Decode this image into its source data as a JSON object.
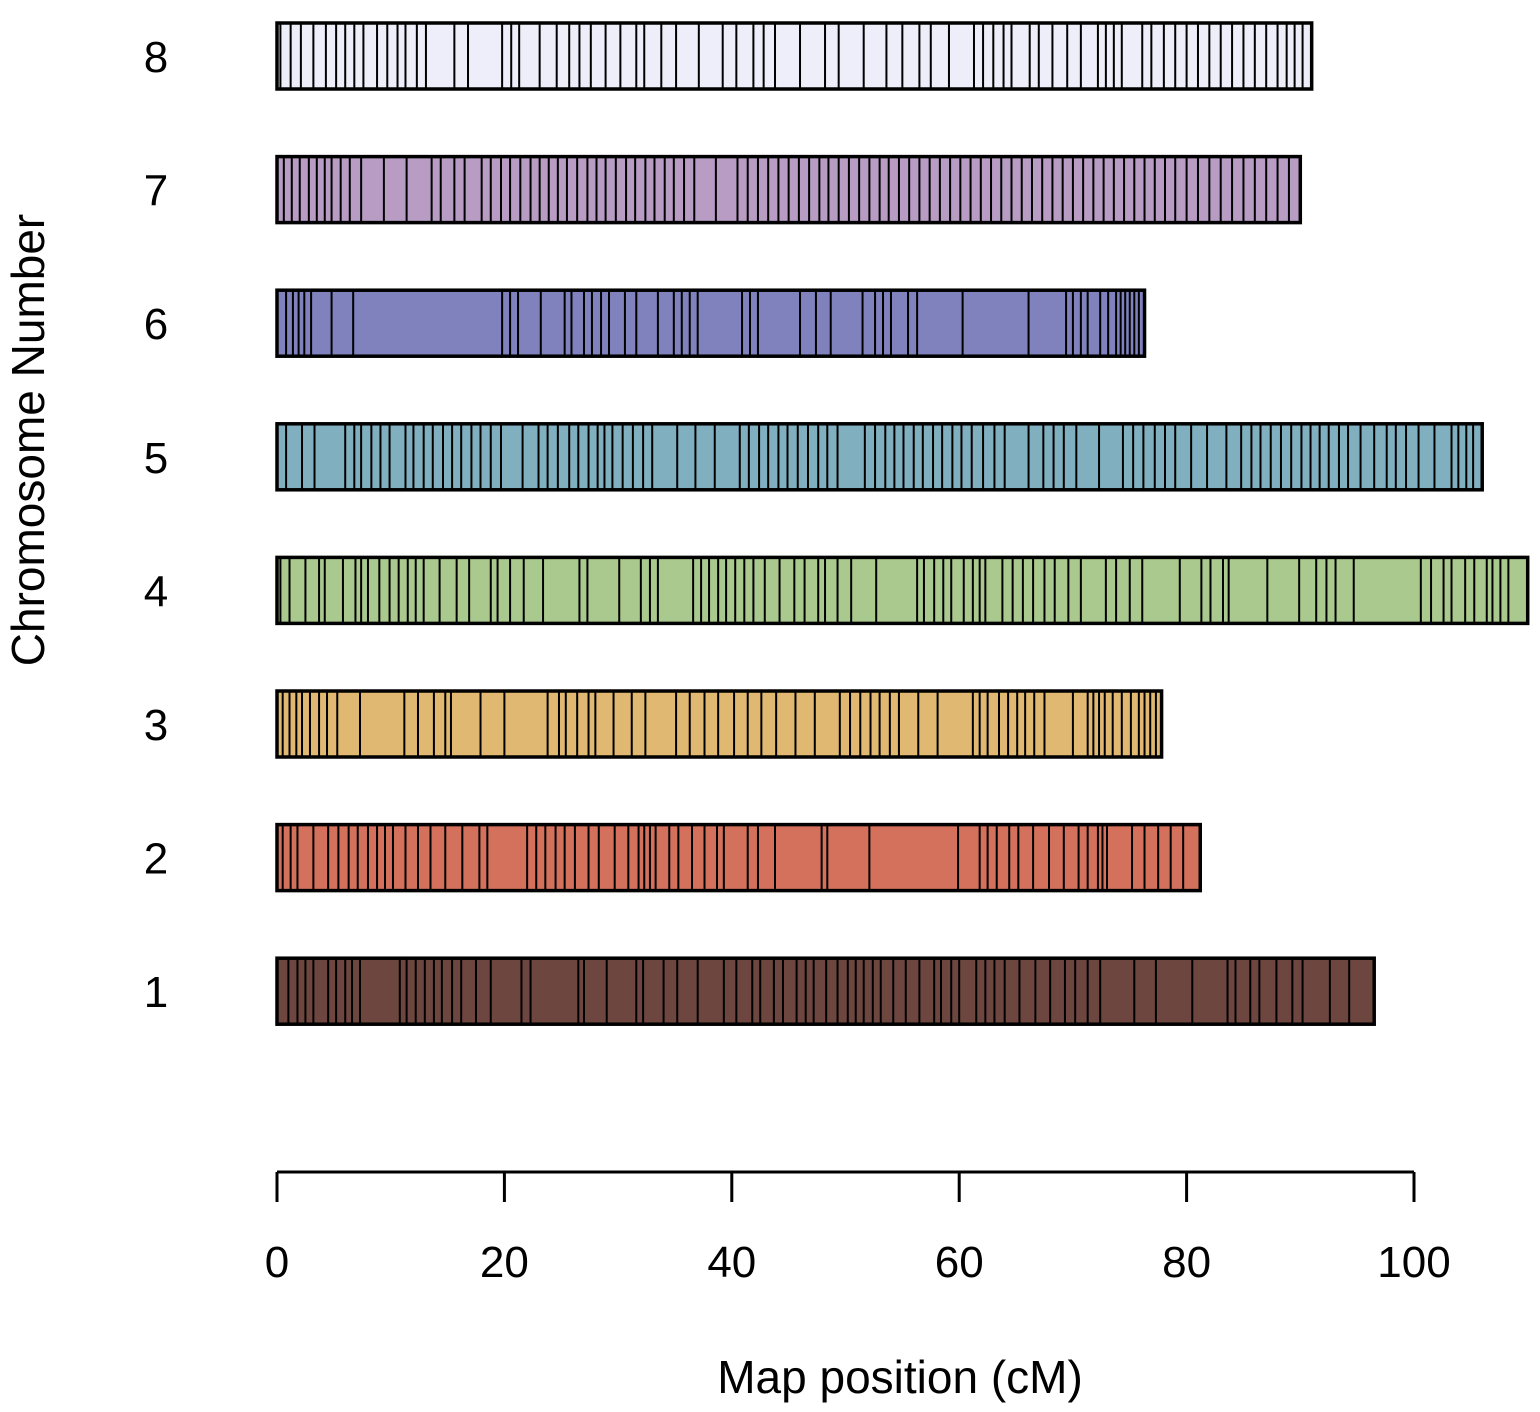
{
  "chart_data": {
    "type": "linkage-map",
    "xlabel": "Map position (cM)",
    "ylabel": "Chromosome Number",
    "xticks": [
      0,
      20,
      40,
      60,
      80,
      100
    ],
    "xlim": [
      0,
      110
    ],
    "chromosomes": [
      {
        "label": "1",
        "length": 96.5,
        "color": "#6e4640",
        "markers": [
          1.0,
          1.8,
          2.5,
          3.2,
          4.5,
          5.2,
          6.0,
          6.6,
          7.3,
          10.8,
          11.4,
          12.2,
          13.0,
          13.8,
          14.5,
          15.4,
          16.2,
          17.5,
          18.8,
          21.5,
          22.3,
          26.5,
          27.0,
          29.0,
          31.6,
          32.2,
          34.0,
          35.2,
          37.0,
          39.3,
          40.4,
          41.8,
          42.5,
          43.7,
          44.5,
          45.7,
          46.5,
          47.2,
          48.3,
          49.3,
          50.2,
          50.9,
          51.6,
          52.4,
          53.1,
          54.2,
          55.3,
          56.5,
          57.8,
          58.4,
          59.3,
          60.0,
          61.5,
          62.3,
          63.1,
          64.0,
          65.3,
          66.7,
          68.0,
          69.3,
          70.2,
          71.3,
          72.4,
          75.4,
          77.3,
          80.5,
          83.6,
          84.3,
          85.6,
          86.4,
          87.9,
          89.3,
          90.2,
          92.6,
          94.3
        ]
      },
      {
        "label": "2",
        "length": 81.2,
        "color": "#d4715c",
        "markers": [
          0.5,
          1.2,
          1.8,
          3.2,
          4.5,
          5.4,
          6.3,
          7.1,
          8.0,
          8.8,
          9.5,
          10.2,
          11.3,
          12.4,
          13.5,
          14.8,
          16.3,
          17.8,
          18.5,
          22.0,
          22.8,
          23.6,
          24.5,
          25.3,
          26.2,
          27.4,
          28.3,
          29.7,
          30.9,
          31.8,
          32.3,
          32.8,
          33.3,
          34.5,
          35.3,
          36.5,
          37.6,
          38.7,
          39.3,
          41.4,
          42.3,
          43.8,
          47.9,
          48.4,
          52.1,
          59.9,
          61.8,
          62.5,
          63.3,
          64.4,
          65.2,
          66.5,
          67.9,
          69.2,
          70.5,
          71.3,
          72.2,
          72.6,
          73.0,
          75.2,
          76.3,
          77.5,
          78.6,
          79.7
        ]
      },
      {
        "label": "3",
        "length": 77.8,
        "color": "#e0b872",
        "markers": [
          0.5,
          1.1,
          1.7,
          2.2,
          2.9,
          3.7,
          4.4,
          5.3,
          7.3,
          11.2,
          12.4,
          13.8,
          14.8,
          15.3,
          17.9,
          20.0,
          23.8,
          24.8,
          25.4,
          26.4,
          27.4,
          28.0,
          29.6,
          31.2,
          32.4,
          35.1,
          36.3,
          37.6,
          38.8,
          40.2,
          41.4,
          42.6,
          43.9,
          45.6,
          47.3,
          49.5,
          50.4,
          51.3,
          52.2,
          53.0,
          53.9,
          54.7,
          56.4,
          58.1,
          61.2,
          61.8,
          62.5,
          63.5,
          64.3,
          65.1,
          65.8,
          66.6,
          67.5,
          70.0,
          71.3,
          71.8,
          72.3,
          72.8,
          73.5,
          74.3,
          75.1,
          75.8,
          76.3,
          76.8,
          77.3
        ]
      },
      {
        "label": "4",
        "length": 110.0,
        "color": "#aac98e",
        "markers": [
          0.3,
          1.1,
          2.5,
          3.7,
          4.2,
          5.8,
          6.9,
          7.4,
          8.0,
          9.0,
          9.9,
          10.7,
          11.5,
          12.2,
          12.9,
          14.3,
          15.8,
          16.9,
          18.8,
          19.4,
          20.5,
          21.7,
          23.4,
          26.6,
          27.3,
          30.1,
          32.0,
          32.8,
          33.5,
          36.6,
          37.3,
          38.0,
          38.8,
          39.5,
          40.3,
          41.1,
          41.9,
          42.9,
          44.2,
          45.5,
          46.4,
          47.6,
          48.2,
          49.3,
          50.5,
          52.7,
          56.3,
          56.9,
          57.8,
          58.6,
          59.3,
          60.4,
          61.2,
          61.8,
          62.3,
          63.8,
          64.7,
          65.6,
          66.5,
          67.5,
          68.4,
          69.6,
          70.7,
          72.9,
          73.8,
          75.0,
          76.1,
          79.4,
          81.3,
          82.1,
          83.2,
          83.7,
          87.1,
          89.9,
          91.4,
          92.3,
          93.1,
          94.7,
          100.6,
          101.5,
          102.6,
          103.3,
          104.5,
          105.3,
          106.4,
          106.9,
          107.6,
          108.3
        ]
      },
      {
        "label": "5",
        "length": 106.0,
        "color": "#80b0c0",
        "markers": [
          0.8,
          2.2,
          3.3,
          6.0,
          6.8,
          7.4,
          8.3,
          9.1,
          9.9,
          11.3,
          12.0,
          12.9,
          13.7,
          14.6,
          15.4,
          16.2,
          17.1,
          17.9,
          18.8,
          19.7,
          21.6,
          23.0,
          23.8,
          24.7,
          25.7,
          26.5,
          27.4,
          28.2,
          28.8,
          29.5,
          30.4,
          31.3,
          32.2,
          33.0,
          35.2,
          36.8,
          38.5,
          40.7,
          41.5,
          42.4,
          43.2,
          44.1,
          44.9,
          45.8,
          46.7,
          47.6,
          48.4,
          49.3,
          51.7,
          52.6,
          53.5,
          54.3,
          55.1,
          56.0,
          56.8,
          57.7,
          58.5,
          59.4,
          60.2,
          61.1,
          62.1,
          63.1,
          64.0,
          66.1,
          67.4,
          68.3,
          69.2,
          70.3,
          72.3,
          74.4,
          75.3,
          76.2,
          77.2,
          78.1,
          79.0,
          80.4,
          81.8,
          83.5,
          84.8,
          85.7,
          86.5,
          87.4,
          88.3,
          89.2,
          90.1,
          90.9,
          91.7,
          92.5,
          93.4,
          94.2,
          95.3,
          96.5,
          97.6,
          98.4,
          99.3,
          100.4,
          101.8,
          103.3,
          103.9,
          104.6,
          105.2
        ]
      },
      {
        "label": "6",
        "length": 76.3,
        "color": "#7f82bc",
        "markers": [
          0.8,
          1.4,
          1.9,
          2.4,
          3.0,
          4.8,
          6.7,
          19.8,
          20.5,
          21.2,
          23.2,
          25.3,
          25.9,
          27.0,
          27.7,
          28.5,
          29.2,
          30.6,
          31.6,
          33.5,
          34.9,
          35.6,
          36.3,
          37.0,
          40.9,
          41.6,
          42.3,
          46.0,
          47.4,
          48.7,
          51.5,
          52.6,
          53.3,
          54.0,
          55.5,
          56.3,
          60.3,
          66.1,
          69.4,
          70.0,
          70.7,
          71.3,
          72.4,
          73.1,
          73.8,
          74.2,
          74.6,
          75.0,
          75.4,
          75.8
        ]
      },
      {
        "label": "7",
        "length": 90.0,
        "color": "#b89cc4",
        "markers": [
          0.6,
          1.3,
          2.0,
          2.8,
          3.5,
          4.2,
          4.8,
          5.6,
          6.4,
          7.4,
          9.4,
          11.4,
          13.6,
          14.4,
          15.6,
          16.5,
          18.0,
          18.8,
          19.7,
          20.5,
          21.4,
          22.3,
          23.1,
          23.9,
          24.7,
          25.5,
          26.4,
          27.3,
          28.1,
          28.9,
          29.8,
          30.7,
          31.5,
          32.4,
          33.2,
          34.1,
          34.9,
          35.8,
          36.7,
          38.6,
          40.5,
          41.4,
          42.3,
          43.2,
          44.1,
          45.0,
          45.9,
          46.8,
          47.7,
          48.5,
          49.4,
          50.3,
          51.2,
          52.1,
          53.0,
          53.8,
          54.7,
          55.6,
          56.5,
          57.4,
          58.3,
          59.2,
          60.1,
          61.0,
          61.9,
          62.8,
          63.7,
          64.6,
          65.5,
          66.4,
          67.3,
          68.2,
          69.1,
          70.0,
          70.9,
          71.8,
          72.7,
          73.6,
          74.5,
          75.4,
          76.3,
          77.2,
          78.1,
          79.0,
          80.0,
          81.0,
          82.0,
          83.0,
          84.0,
          85.0,
          86.0,
          87.0,
          88.0,
          89.0
        ]
      },
      {
        "label": "8",
        "length": 91.0,
        "color": "#edeef9",
        "markers": [
          0.3,
          1.2,
          2.1,
          3.2,
          4.3,
          5.2,
          6.0,
          6.8,
          7.6,
          8.8,
          9.7,
          10.6,
          11.3,
          12.3,
          13.1,
          15.6,
          16.8,
          19.8,
          20.6,
          21.3,
          23.1,
          24.6,
          25.7,
          26.6,
          27.6,
          28.9,
          30.2,
          31.6,
          32.3,
          33.8,
          35.1,
          37.1,
          39.2,
          40.4,
          41.9,
          42.8,
          43.8,
          46.0,
          48.2,
          49.4,
          51.6,
          53.6,
          55.0,
          56.5,
          57.5,
          59.1,
          61.3,
          62.1,
          63.0,
          63.9,
          64.6,
          66.2,
          67.0,
          68.2,
          69.5,
          70.7,
          72.2,
          72.9,
          73.6,
          74.3,
          76.1,
          76.9,
          78.0,
          79.0,
          80.0,
          81.0,
          82.0,
          83.0,
          84.0,
          85.0,
          86.0,
          87.0,
          88.0,
          88.8,
          89.5,
          90.2
        ]
      }
    ]
  }
}
